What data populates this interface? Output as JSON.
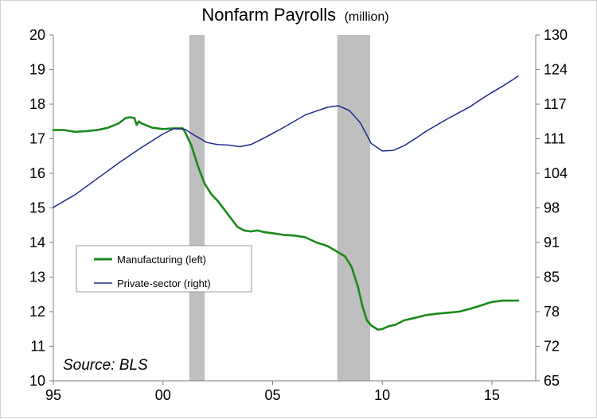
{
  "chart_data": {
    "type": "line",
    "title": "Nonfarm Payrolls",
    "title_unit": "(million)",
    "source": "Source: BLS",
    "grid": false,
    "legend_position": "bottom-left",
    "x_axis": {
      "min": 1995,
      "max": 2017,
      "ticks": [
        {
          "value": 1995,
          "label": "95"
        },
        {
          "value": 2000,
          "label": "00"
        },
        {
          "value": 2005,
          "label": "05"
        },
        {
          "value": 2010,
          "label": "10"
        },
        {
          "value": 2015,
          "label": "15"
        }
      ]
    },
    "y_left": {
      "min": 10,
      "max": 20,
      "ticks": [
        "10",
        "11",
        "12",
        "13",
        "14",
        "15",
        "16",
        "17",
        "18",
        "19",
        "20"
      ]
    },
    "y_right": {
      "min": 65,
      "max": 130,
      "ticks": [
        "65",
        "72",
        "78",
        "85",
        "91",
        "98",
        "104",
        "111",
        "117",
        "124",
        "130"
      ]
    },
    "recessions": [
      {
        "start": 2001.2,
        "end": 2001.9
      },
      {
        "start": 2007.95,
        "end": 2009.45
      }
    ],
    "series": [
      {
        "name": "Manufacturing (left)",
        "axis": "left",
        "color": "#1a8a1a",
        "x": [
          1995.0,
          1995.5,
          1996.0,
          1996.5,
          1997.0,
          1997.5,
          1998.0,
          1998.3,
          1998.5,
          1998.7,
          1998.8,
          1998.9,
          1999.0,
          1999.5,
          2000.0,
          2000.5,
          2000.9,
          2001.0,
          2001.3,
          2001.6,
          2001.9,
          2002.2,
          2002.5,
          2002.8,
          2003.1,
          2003.4,
          2003.7,
          2004.0,
          2004.3,
          2004.6,
          2005.0,
          2005.5,
          2006.0,
          2006.5,
          2007.0,
          2007.5,
          2007.9,
          2008.3,
          2008.6,
          2008.9,
          2009.1,
          2009.3,
          2009.5,
          2009.8,
          2010.0,
          2010.3,
          2010.6,
          2011.0,
          2011.5,
          2012.0,
          2012.5,
          2013.0,
          2013.5,
          2014.0,
          2014.5,
          2015.0,
          2015.5,
          2016.0,
          2016.2
        ],
        "y": [
          17.25,
          17.25,
          17.2,
          17.22,
          17.25,
          17.32,
          17.45,
          17.6,
          17.62,
          17.6,
          17.4,
          17.5,
          17.45,
          17.32,
          17.28,
          17.3,
          17.3,
          17.2,
          16.8,
          16.2,
          15.7,
          15.4,
          15.2,
          14.95,
          14.7,
          14.45,
          14.35,
          14.32,
          14.35,
          14.3,
          14.27,
          14.22,
          14.2,
          14.15,
          14.0,
          13.9,
          13.75,
          13.6,
          13.3,
          12.7,
          12.15,
          11.75,
          11.6,
          11.48,
          11.5,
          11.58,
          11.62,
          11.75,
          11.82,
          11.9,
          11.94,
          11.97,
          12.0,
          12.08,
          12.18,
          12.28,
          12.32,
          12.32,
          12.32
        ]
      },
      {
        "name": "Private-sector (right)",
        "axis": "right",
        "color": "#1c2b8c",
        "x": [
          1995.0,
          1996.0,
          1997.0,
          1998.0,
          1999.0,
          2000.0,
          2000.5,
          2001.0,
          2001.5,
          2002.0,
          2002.5,
          2003.0,
          2003.5,
          2004.0,
          2004.5,
          2005.0,
          2005.5,
          2006.0,
          2006.5,
          2007.0,
          2007.5,
          2008.0,
          2008.5,
          2009.0,
          2009.5,
          2010.0,
          2010.5,
          2011.0,
          2011.5,
          2012.0,
          2012.5,
          2013.0,
          2013.5,
          2014.0,
          2014.5,
          2015.0,
          2015.5,
          2016.0,
          2016.2
        ],
        "y": [
          97.6,
          100.0,
          103.0,
          106.0,
          108.8,
          111.4,
          112.4,
          112.3,
          111.0,
          109.8,
          109.4,
          109.3,
          109.0,
          109.4,
          110.4,
          111.5,
          112.6,
          113.8,
          115.0,
          115.7,
          116.4,
          116.7,
          115.8,
          113.5,
          109.6,
          108.2,
          108.3,
          109.2,
          110.5,
          111.9,
          113.1,
          114.3,
          115.4,
          116.5,
          117.9,
          119.2,
          120.4,
          121.7,
          122.3
        ]
      }
    ]
  }
}
